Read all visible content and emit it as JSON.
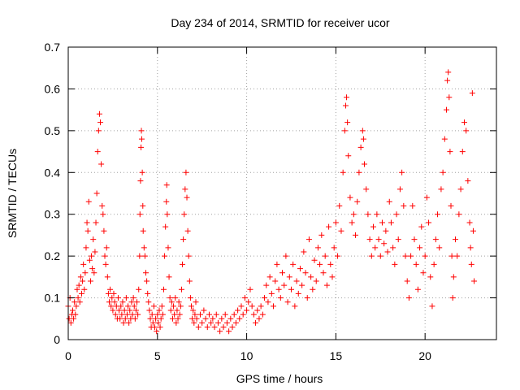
{
  "chart_data": {
    "type": "scatter",
    "title": "Day 234 of 2014, SRMTID for receiver ucor",
    "xlabel": "GPS time / hours",
    "ylabel": "SRMTID / TECUs",
    "xlim": [
      0,
      24
    ],
    "ylim": [
      0,
      0.7
    ],
    "xticks": [
      0,
      5,
      10,
      15,
      20
    ],
    "yticks": [
      0,
      0.1,
      0.2,
      0.3,
      0.4,
      0.5,
      0.6,
      0.7
    ],
    "grid": true,
    "marker": "plus",
    "series": [
      {
        "name": "SRMTID",
        "color": "#ff0000",
        "points": [
          [
            0.0,
            0.08
          ],
          [
            0.05,
            0.05
          ],
          [
            0.1,
            0.1
          ],
          [
            0.15,
            0.04
          ],
          [
            0.2,
            0.06
          ],
          [
            0.25,
            0.07
          ],
          [
            0.3,
            0.05
          ],
          [
            0.35,
            0.09
          ],
          [
            0.4,
            0.06
          ],
          [
            0.45,
            0.08
          ],
          [
            0.5,
            0.12
          ],
          [
            0.55,
            0.1
          ],
          [
            0.6,
            0.13
          ],
          [
            0.65,
            0.09
          ],
          [
            0.7,
            0.15
          ],
          [
            0.75,
            0.11
          ],
          [
            0.8,
            0.14
          ],
          [
            0.85,
            0.18
          ],
          [
            0.9,
            0.12
          ],
          [
            0.95,
            0.16
          ],
          [
            1.0,
            0.22
          ],
          [
            1.05,
            0.28
          ],
          [
            1.1,
            0.26
          ],
          [
            1.15,
            0.33
          ],
          [
            1.2,
            0.19
          ],
          [
            1.25,
            0.14
          ],
          [
            1.3,
            0.2
          ],
          [
            1.35,
            0.17
          ],
          [
            1.4,
            0.24
          ],
          [
            1.45,
            0.16
          ],
          [
            1.5,
            0.21
          ],
          [
            1.55,
            0.28
          ],
          [
            1.6,
            0.35
          ],
          [
            1.65,
            0.45
          ],
          [
            1.7,
            0.5
          ],
          [
            1.75,
            0.54
          ],
          [
            1.8,
            0.52
          ],
          [
            1.85,
            0.42
          ],
          [
            1.9,
            0.32
          ],
          [
            1.95,
            0.3
          ],
          [
            2.0,
            0.26
          ],
          [
            2.05,
            0.2
          ],
          [
            2.1,
            0.18
          ],
          [
            2.15,
            0.22
          ],
          [
            2.2,
            0.15
          ],
          [
            2.25,
            0.11
          ],
          [
            2.3,
            0.09
          ],
          [
            2.35,
            0.12
          ],
          [
            2.4,
            0.08
          ],
          [
            2.45,
            0.1
          ],
          [
            2.5,
            0.07
          ],
          [
            2.55,
            0.11
          ],
          [
            2.6,
            0.09
          ],
          [
            2.65,
            0.06
          ],
          [
            2.7,
            0.08
          ],
          [
            2.75,
            0.05
          ],
          [
            2.8,
            0.1
          ],
          [
            2.85,
            0.07
          ],
          [
            2.9,
            0.05
          ],
          [
            2.95,
            0.08
          ],
          [
            3.0,
            0.06
          ],
          [
            3.05,
            0.09
          ],
          [
            3.1,
            0.04
          ],
          [
            3.15,
            0.07
          ],
          [
            3.2,
            0.05
          ],
          [
            3.25,
            0.1
          ],
          [
            3.3,
            0.06
          ],
          [
            3.35,
            0.08
          ],
          [
            3.4,
            0.04
          ],
          [
            3.45,
            0.07
          ],
          [
            3.5,
            0.05
          ],
          [
            3.55,
            0.09
          ],
          [
            3.6,
            0.06
          ],
          [
            3.65,
            0.1
          ],
          [
            3.7,
            0.08
          ],
          [
            3.75,
            0.05
          ],
          [
            3.8,
            0.07
          ],
          [
            3.85,
            0.09
          ],
          [
            3.9,
            0.06
          ],
          [
            3.95,
            0.12
          ],
          [
            4.0,
            0.2
          ],
          [
            4.02,
            0.3
          ],
          [
            4.05,
            0.38
          ],
          [
            4.08,
            0.46
          ],
          [
            4.1,
            0.5
          ],
          [
            4.12,
            0.48
          ],
          [
            4.15,
            0.4
          ],
          [
            4.18,
            0.32
          ],
          [
            4.2,
            0.26
          ],
          [
            4.25,
            0.22
          ],
          [
            4.3,
            0.2
          ],
          [
            4.35,
            0.16
          ],
          [
            4.4,
            0.14
          ],
          [
            4.45,
            0.11
          ],
          [
            4.5,
            0.09
          ],
          [
            4.55,
            0.07
          ],
          [
            4.6,
            0.05
          ],
          [
            4.65,
            0.03
          ],
          [
            4.7,
            0.06
          ],
          [
            4.75,
            0.04
          ],
          [
            4.8,
            0.08
          ],
          [
            4.85,
            0.03
          ],
          [
            4.9,
            0.05
          ],
          [
            4.95,
            0.02
          ],
          [
            5.0,
            0.06
          ],
          [
            5.05,
            0.04
          ],
          [
            5.1,
            0.07
          ],
          [
            5.15,
            0.03
          ],
          [
            5.2,
            0.05
          ],
          [
            5.25,
            0.08
          ],
          [
            5.3,
            0.06
          ],
          [
            5.35,
            0.12
          ],
          [
            5.4,
            0.2
          ],
          [
            5.45,
            0.27
          ],
          [
            5.5,
            0.33
          ],
          [
            5.52,
            0.37
          ],
          [
            5.55,
            0.3
          ],
          [
            5.6,
            0.22
          ],
          [
            5.65,
            0.15
          ],
          [
            5.7,
            0.1
          ],
          [
            5.75,
            0.07
          ],
          [
            5.8,
            0.09
          ],
          [
            5.85,
            0.05
          ],
          [
            5.9,
            0.08
          ],
          [
            5.95,
            0.06
          ],
          [
            6.0,
            0.1
          ],
          [
            6.05,
            0.04
          ],
          [
            6.1,
            0.07
          ],
          [
            6.15,
            0.05
          ],
          [
            6.2,
            0.09
          ],
          [
            6.25,
            0.06
          ],
          [
            6.3,
            0.08
          ],
          [
            6.35,
            0.12
          ],
          [
            6.4,
            0.18
          ],
          [
            6.45,
            0.24
          ],
          [
            6.5,
            0.3
          ],
          [
            6.55,
            0.36
          ],
          [
            6.6,
            0.4
          ],
          [
            6.65,
            0.34
          ],
          [
            6.7,
            0.26
          ],
          [
            6.75,
            0.2
          ],
          [
            6.8,
            0.14
          ],
          [
            6.85,
            0.1
          ],
          [
            6.9,
            0.08
          ],
          [
            6.95,
            0.05
          ],
          [
            7.0,
            0.07
          ],
          [
            7.05,
            0.04
          ],
          [
            7.1,
            0.06
          ],
          [
            7.15,
            0.09
          ],
          [
            7.2,
            0.05
          ],
          [
            7.3,
            0.03
          ],
          [
            7.4,
            0.06
          ],
          [
            7.5,
            0.04
          ],
          [
            7.6,
            0.07
          ],
          [
            7.7,
            0.05
          ],
          [
            7.8,
            0.03
          ],
          [
            7.9,
            0.06
          ],
          [
            8.0,
            0.04
          ],
          [
            8.1,
            0.05
          ],
          [
            8.2,
            0.03
          ],
          [
            8.3,
            0.06
          ],
          [
            8.4,
            0.04
          ],
          [
            8.5,
            0.02
          ],
          [
            8.6,
            0.05
          ],
          [
            8.7,
            0.03
          ],
          [
            8.8,
            0.06
          ],
          [
            8.9,
            0.04
          ],
          [
            9.0,
            0.02
          ],
          [
            9.1,
            0.05
          ],
          [
            9.2,
            0.03
          ],
          [
            9.3,
            0.06
          ],
          [
            9.4,
            0.04
          ],
          [
            9.5,
            0.07
          ],
          [
            9.6,
            0.05
          ],
          [
            9.7,
            0.08
          ],
          [
            9.8,
            0.06
          ],
          [
            9.9,
            0.1
          ],
          [
            10.0,
            0.07
          ],
          [
            10.1,
            0.09
          ],
          [
            10.2,
            0.12
          ],
          [
            10.3,
            0.08
          ],
          [
            10.4,
            0.06
          ],
          [
            10.5,
            0.04
          ],
          [
            10.6,
            0.07
          ],
          [
            10.7,
            0.05
          ],
          [
            10.8,
            0.08
          ],
          [
            10.9,
            0.06
          ],
          [
            11.0,
            0.1
          ],
          [
            11.1,
            0.13
          ],
          [
            11.2,
            0.09
          ],
          [
            11.3,
            0.15
          ],
          [
            11.4,
            0.11
          ],
          [
            11.5,
            0.08
          ],
          [
            11.6,
            0.14
          ],
          [
            11.7,
            0.18
          ],
          [
            11.8,
            0.12
          ],
          [
            11.9,
            0.1
          ],
          [
            12.0,
            0.16
          ],
          [
            12.1,
            0.13
          ],
          [
            12.2,
            0.2
          ],
          [
            12.3,
            0.09
          ],
          [
            12.4,
            0.15
          ],
          [
            12.5,
            0.12
          ],
          [
            12.6,
            0.18
          ],
          [
            12.7,
            0.08
          ],
          [
            12.8,
            0.14
          ],
          [
            12.9,
            0.11
          ],
          [
            13.0,
            0.17
          ],
          [
            13.1,
            0.13
          ],
          [
            13.2,
            0.21
          ],
          [
            13.3,
            0.16
          ],
          [
            13.4,
            0.1
          ],
          [
            13.5,
            0.24
          ],
          [
            13.6,
            0.15
          ],
          [
            13.7,
            0.12
          ],
          [
            13.8,
            0.19
          ],
          [
            13.9,
            0.14
          ],
          [
            14.0,
            0.22
          ],
          [
            14.1,
            0.18
          ],
          [
            14.2,
            0.25
          ],
          [
            14.3,
            0.16
          ],
          [
            14.4,
            0.2
          ],
          [
            14.5,
            0.13
          ],
          [
            14.6,
            0.27
          ],
          [
            14.7,
            0.18
          ],
          [
            14.8,
            0.15
          ],
          [
            14.9,
            0.22
          ],
          [
            15.0,
            0.28
          ],
          [
            15.1,
            0.2
          ],
          [
            15.2,
            0.32
          ],
          [
            15.3,
            0.26
          ],
          [
            15.4,
            0.4
          ],
          [
            15.5,
            0.5
          ],
          [
            15.55,
            0.56
          ],
          [
            15.6,
            0.58
          ],
          [
            15.65,
            0.52
          ],
          [
            15.7,
            0.44
          ],
          [
            15.8,
            0.34
          ],
          [
            15.9,
            0.28
          ],
          [
            16.0,
            0.3
          ],
          [
            16.1,
            0.25
          ],
          [
            16.2,
            0.33
          ],
          [
            16.3,
            0.4
          ],
          [
            16.4,
            0.46
          ],
          [
            16.5,
            0.5
          ],
          [
            16.55,
            0.48
          ],
          [
            16.6,
            0.42
          ],
          [
            16.7,
            0.36
          ],
          [
            16.8,
            0.3
          ],
          [
            16.9,
            0.24
          ],
          [
            17.0,
            0.2
          ],
          [
            17.1,
            0.27
          ],
          [
            17.2,
            0.22
          ],
          [
            17.3,
            0.3
          ],
          [
            17.4,
            0.24
          ],
          [
            17.5,
            0.2
          ],
          [
            17.6,
            0.28
          ],
          [
            17.7,
            0.23
          ],
          [
            17.8,
            0.26
          ],
          [
            17.9,
            0.21
          ],
          [
            18.0,
            0.33
          ],
          [
            18.1,
            0.28
          ],
          [
            18.2,
            0.22
          ],
          [
            18.3,
            0.18
          ],
          [
            18.4,
            0.3
          ],
          [
            18.5,
            0.24
          ],
          [
            18.6,
            0.36
          ],
          [
            18.7,
            0.4
          ],
          [
            18.8,
            0.32
          ],
          [
            18.9,
            0.2
          ],
          [
            19.0,
            0.14
          ],
          [
            19.1,
            0.1
          ],
          [
            19.2,
            0.2
          ],
          [
            19.3,
            0.32
          ],
          [
            19.4,
            0.24
          ],
          [
            19.5,
            0.18
          ],
          [
            19.6,
            0.12
          ],
          [
            19.7,
            0.22
          ],
          [
            19.8,
            0.27
          ],
          [
            19.9,
            0.16
          ],
          [
            20.0,
            0.2
          ],
          [
            20.1,
            0.34
          ],
          [
            20.2,
            0.28
          ],
          [
            20.3,
            0.15
          ],
          [
            20.4,
            0.08
          ],
          [
            20.5,
            0.18
          ],
          [
            20.6,
            0.24
          ],
          [
            20.7,
            0.3
          ],
          [
            20.8,
            0.22
          ],
          [
            20.9,
            0.36
          ],
          [
            21.0,
            0.4
          ],
          [
            21.1,
            0.48
          ],
          [
            21.2,
            0.55
          ],
          [
            21.25,
            0.62
          ],
          [
            21.3,
            0.64
          ],
          [
            21.35,
            0.58
          ],
          [
            21.4,
            0.45
          ],
          [
            21.45,
            0.32
          ],
          [
            21.5,
            0.2
          ],
          [
            21.55,
            0.1
          ],
          [
            21.6,
            0.15
          ],
          [
            21.7,
            0.24
          ],
          [
            21.8,
            0.2
          ],
          [
            21.9,
            0.3
          ],
          [
            22.0,
            0.36
          ],
          [
            22.1,
            0.45
          ],
          [
            22.2,
            0.52
          ],
          [
            22.3,
            0.5
          ],
          [
            22.4,
            0.38
          ],
          [
            22.5,
            0.28
          ],
          [
            22.55,
            0.22
          ],
          [
            22.6,
            0.18
          ],
          [
            22.65,
            0.59
          ],
          [
            22.7,
            0.26
          ],
          [
            22.75,
            0.14
          ]
        ]
      }
    ]
  }
}
